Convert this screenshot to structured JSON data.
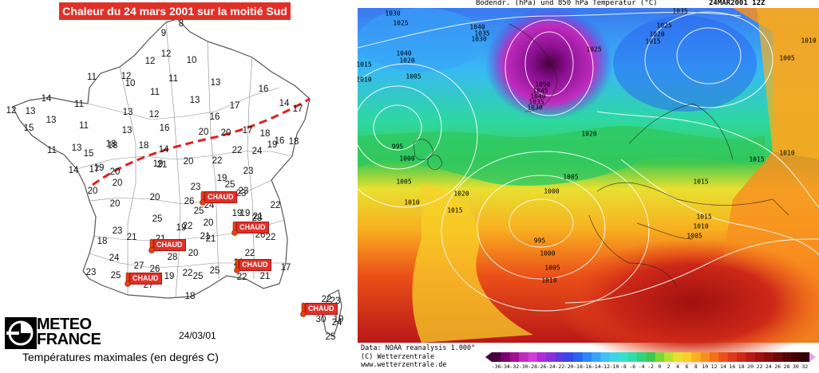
{
  "left_panel": {
    "title": "Chaleur du 24 mars 2001 sur la moitié Sud",
    "date": "24/03/01",
    "legend": "Températures maximales (en degrés C)",
    "logo": "METEO FRANCE",
    "chaud_label": "CHAUD",
    "temperatures": [
      "9",
      "8",
      "12",
      "10",
      "12",
      "11",
      "12",
      "10",
      "11",
      "13",
      "14",
      "12",
      "13",
      "13",
      "11",
      "11",
      "13",
      "13",
      "17",
      "16",
      "14",
      "15",
      "12",
      "11",
      "17",
      "13",
      "16",
      "16",
      "18",
      "20",
      "20",
      "17",
      "11",
      "14",
      "18",
      "18",
      "13",
      "20",
      "14",
      "19",
      "22",
      "24",
      "19",
      "20",
      "21",
      "19",
      "23",
      "20",
      "15",
      "17",
      "16",
      "18",
      "18",
      "22",
      "20",
      "19",
      "23",
      "25",
      "23",
      "24",
      "20",
      "20",
      "26",
      "25",
      "22",
      "23",
      "19",
      "21",
      "22",
      "20",
      "25",
      "21",
      "19",
      "28",
      "20",
      "21",
      "23",
      "21",
      "19",
      "22",
      "18",
      "21",
      "22",
      "25",
      "22",
      "28",
      "26",
      "19",
      "24",
      "22",
      "27",
      "26",
      "22",
      "17",
      "23",
      "25",
      "27",
      "19",
      "25",
      "21",
      "18",
      "22",
      "23",
      "19",
      "30",
      "24",
      "25"
    ]
  },
  "right_panel": {
    "header_left": "Bodendr. (hPa) und 850 hPa Temperatur (°C)",
    "header_right": "24MAR2001  12Z",
    "credits": [
      "Data: NOAA reanalysis 1.000°",
      "(C) Wetterzentrale",
      "www.wetterzentrale.de"
    ],
    "isobar_labels": [
      "1030",
      "1025",
      "1040",
      "1035",
      "1030",
      "1035",
      "1025",
      "1020",
      "1015",
      "1010",
      "1005",
      "1050",
      "1045",
      "1040",
      "1035",
      "1030",
      "1025",
      "1040",
      "1015",
      "1020",
      "995",
      "1000",
      "1005",
      "1010",
      "1020",
      "1015",
      "1005",
      "1000",
      "995",
      "1000",
      "1005",
      "1010",
      "1020",
      "1015",
      "1010",
      "1005",
      "1015",
      "1015",
      "1010",
      "1010",
      "1005"
    ],
    "colorbar_ticks": [
      "-36",
      "-34",
      "-32",
      "-30",
      "-28",
      "-26",
      "-24",
      "-22",
      "-20",
      "-18",
      "-16",
      "-14",
      "-12",
      "-10",
      "-8",
      "-6",
      "-4",
      "-2",
      "0",
      "2",
      "4",
      "6",
      "8",
      "10",
      "12",
      "14",
      "16",
      "18",
      "20",
      "22",
      "24",
      "26",
      "28",
      "30",
      "32"
    ],
    "colorbar_colors": [
      "#4a0040",
      "#7a0070",
      "#a0108f",
      "#c02cbe",
      "#d23cd8",
      "#b02ad8",
      "#8830d8",
      "#5a3ae0",
      "#3848e8",
      "#2a62f2",
      "#2e86f6",
      "#38a4f8",
      "#40c0f4",
      "#40d4e8",
      "#38e0cc",
      "#30dca8",
      "#2ed47c",
      "#3cc850",
      "#7ad838",
      "#b8e030",
      "#e8e030",
      "#f8d028",
      "#f8b020",
      "#f89020",
      "#f47018",
      "#ec5018",
      "#e03818",
      "#cc2818",
      "#b81818",
      "#a01010",
      "#880c0c",
      "#700808",
      "#580404",
      "#400000",
      "#300000"
    ]
  }
}
